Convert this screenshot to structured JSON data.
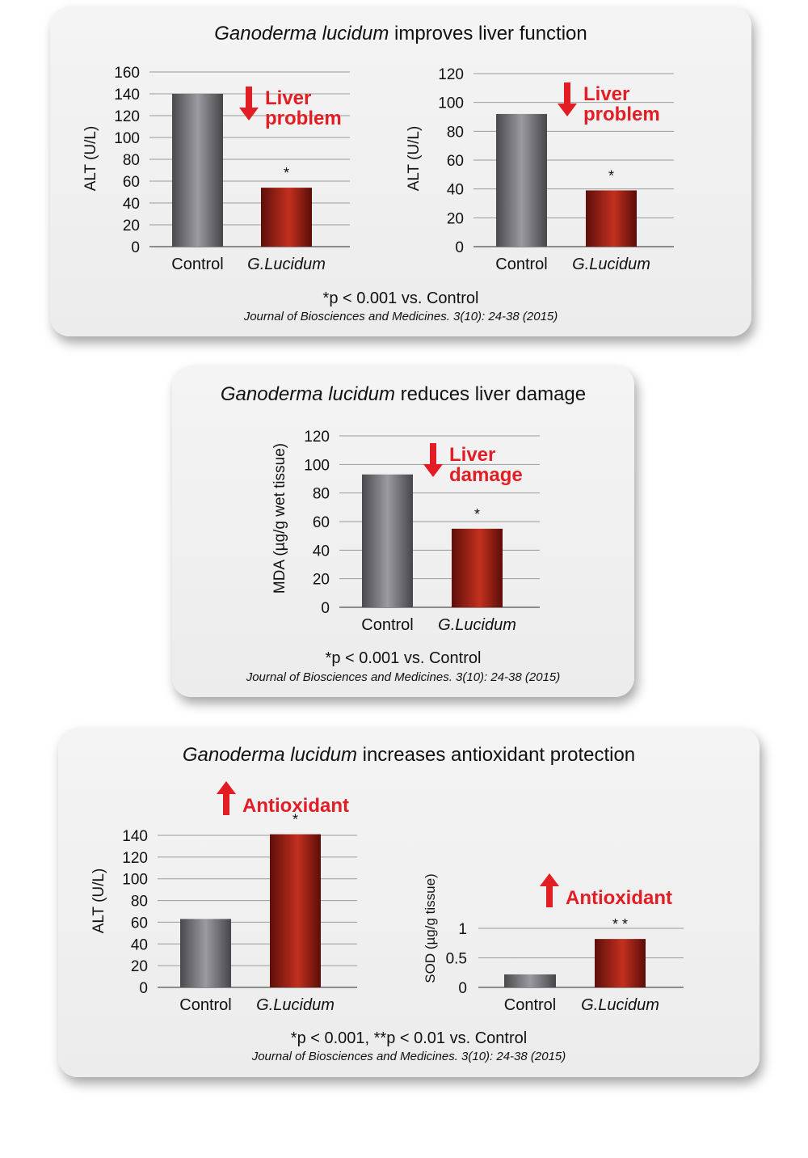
{
  "panels": [
    {
      "title_italic": "Ganoderma lucidum",
      "title_rest": " improves liver function",
      "footnote": "*p < 0.001 vs. Control",
      "citation": "Journal of Biosciences and Medicines. 3(10): 24-38 (2015)"
    },
    {
      "title_italic": "Ganoderma lucidum",
      "title_rest": " reduces liver damage",
      "footnote": "*p < 0.001 vs. Control",
      "citation": "Journal of Biosciences and Medicines. 3(10): 24-38 (2015)"
    },
    {
      "title_italic": "Ganoderma lucidum",
      "title_rest": " increases antioxidant protection",
      "footnote": "*p < 0.001, **p < 0.01 vs. Control",
      "citation": "Journal of Biosciences and Medicines. 3(10): 24-38 (2015)"
    }
  ],
  "chart_data": [
    {
      "type": "bar",
      "ylabel": "ALT (U/L)",
      "categories": [
        "Control",
        "G.Lucidum"
      ],
      "values": [
        140,
        54
      ],
      "ylim": [
        0,
        160
      ],
      "yticks": [
        0,
        20,
        40,
        60,
        80,
        100,
        120,
        140,
        160
      ],
      "marks": [
        "",
        "*"
      ],
      "annotation": [
        "Liver",
        "problem"
      ],
      "direction": "down",
      "grid": true
    },
    {
      "type": "bar",
      "ylabel": "ALT (U/L)",
      "categories": [
        "Control",
        "G.Lucidum"
      ],
      "values": [
        92,
        39
      ],
      "ylim": [
        0,
        120
      ],
      "yticks": [
        0,
        20,
        40,
        60,
        80,
        100,
        120
      ],
      "marks": [
        "",
        "*"
      ],
      "annotation": [
        "Liver",
        "problem"
      ],
      "direction": "down",
      "grid": true
    },
    {
      "type": "bar",
      "ylabel": "MDA (µg/g wet tissue)",
      "categories": [
        "Control",
        "G.Lucidum"
      ],
      "values": [
        93,
        55
      ],
      "ylim": [
        0,
        120
      ],
      "yticks": [
        0,
        20,
        40,
        60,
        80,
        100,
        120
      ],
      "marks": [
        "",
        "*"
      ],
      "annotation": [
        "Liver",
        "damage"
      ],
      "direction": "down",
      "grid": true
    },
    {
      "type": "bar",
      "ylabel": "ALT (U/L)",
      "categories": [
        "Control",
        "G.Lucidum"
      ],
      "values": [
        63,
        141
      ],
      "ylim": [
        0,
        140
      ],
      "yticks": [
        0,
        20,
        40,
        60,
        80,
        100,
        120,
        140
      ],
      "marks": [
        "",
        "*"
      ],
      "annotation": [
        "Antioxidant"
      ],
      "direction": "up",
      "grid": true
    },
    {
      "type": "bar",
      "ylabel": "SOD (µg/g tissue)",
      "categories": [
        "Control",
        "G.Lucidum"
      ],
      "values": [
        0.22,
        0.82
      ],
      "ylim": [
        0,
        1
      ],
      "yticks": [
        0,
        0.5,
        1
      ],
      "marks": [
        "",
        "* *"
      ],
      "annotation": [
        "Antioxidant"
      ],
      "direction": "up",
      "grid": true
    }
  ]
}
